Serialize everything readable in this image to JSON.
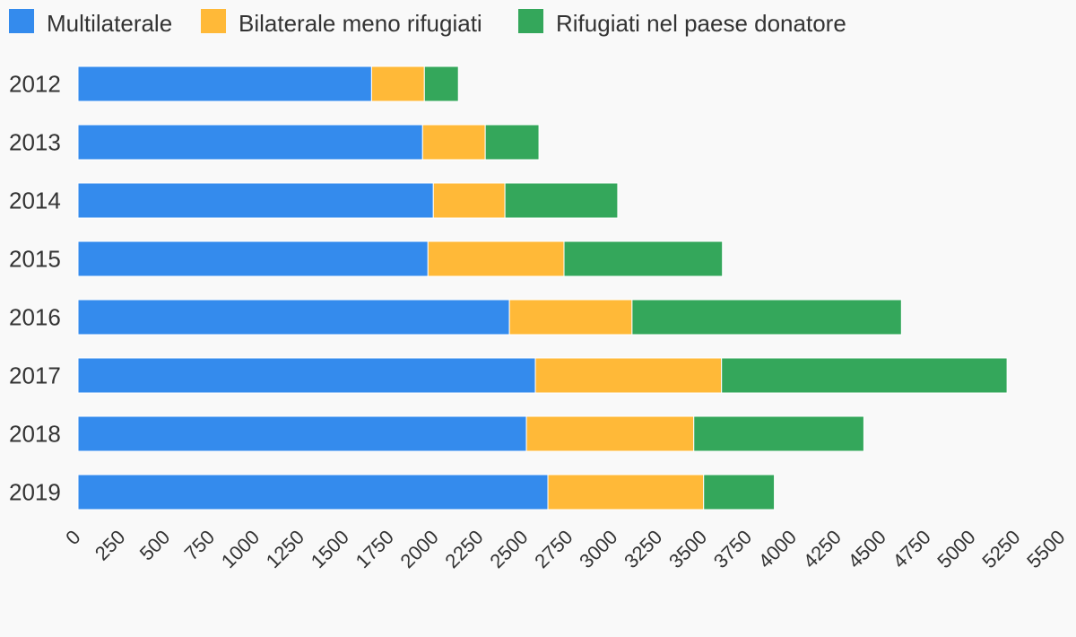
{
  "chart_data": {
    "type": "bar",
    "orientation": "horizontal",
    "stacked": true,
    "categories": [
      "2012",
      "2013",
      "2014",
      "2015",
      "2016",
      "2017",
      "2018",
      "2019"
    ],
    "series": [
      {
        "name": "Multilaterale",
        "color": "#348bed",
        "values": [
          1640,
          1925,
          1985,
          1955,
          2410,
          2555,
          2505,
          2625
        ]
      },
      {
        "name": "Bilaterale meno rifugiati",
        "color": "#ffb938",
        "values": [
          295,
          350,
          400,
          760,
          685,
          1040,
          935,
          870
        ]
      },
      {
        "name": "Rifugiati nel paese donatore",
        "color": "#34a75b",
        "values": [
          190,
          300,
          630,
          885,
          1505,
          1595,
          950,
          395
        ]
      }
    ],
    "x_ticks": [
      "0",
      "250",
      "500",
      "750",
      "1000",
      "1250",
      "1500",
      "1750",
      "2000",
      "2250",
      "2500",
      "2750",
      "3000",
      "3250",
      "3500",
      "3750",
      "4000",
      "4250",
      "4500",
      "4750",
      "5000",
      "5250",
      "5500"
    ],
    "xlim": [
      0,
      5500
    ],
    "grid": false,
    "legend_position": "top-left"
  }
}
